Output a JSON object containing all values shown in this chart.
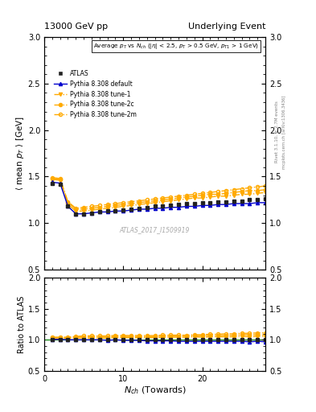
{
  "title_left": "13000 GeV pp",
  "title_right": "Underlying Event",
  "watermark": "ATLAS_2017_I1509919",
  "right_label_top": "Rivet 3.1.10, ≥ 2.7M events",
  "right_label_bottom": "mcplots.cern.ch [arXiv:1306.3436]",
  "ylim_main": [
    0.5,
    3.0
  ],
  "ylim_ratio": [
    0.5,
    2.0
  ],
  "xlim": [
    0,
    28
  ],
  "nch": [
    1,
    2,
    3,
    4,
    5,
    6,
    7,
    8,
    9,
    10,
    11,
    12,
    13,
    14,
    15,
    16,
    17,
    18,
    19,
    20,
    21,
    22,
    23,
    24,
    25,
    26,
    27,
    28
  ],
  "atlas_data": [
    1.43,
    1.42,
    1.18,
    1.1,
    1.1,
    1.11,
    1.12,
    1.13,
    1.13,
    1.14,
    1.15,
    1.16,
    1.17,
    1.18,
    1.18,
    1.19,
    1.2,
    1.21,
    1.21,
    1.22,
    1.22,
    1.23,
    1.23,
    1.24,
    1.24,
    1.25,
    1.25,
    1.26
  ],
  "pythia_default": [
    1.44,
    1.43,
    1.18,
    1.1,
    1.1,
    1.11,
    1.12,
    1.12,
    1.13,
    1.13,
    1.14,
    1.15,
    1.15,
    1.16,
    1.16,
    1.17,
    1.17,
    1.18,
    1.18,
    1.19,
    1.19,
    1.2,
    1.2,
    1.21,
    1.21,
    1.21,
    1.22,
    1.22
  ],
  "pythia_tune1": [
    1.47,
    1.46,
    1.2,
    1.13,
    1.13,
    1.14,
    1.15,
    1.16,
    1.17,
    1.18,
    1.19,
    1.2,
    1.21,
    1.22,
    1.23,
    1.24,
    1.25,
    1.26,
    1.27,
    1.27,
    1.28,
    1.29,
    1.29,
    1.3,
    1.31,
    1.31,
    1.32,
    1.33
  ],
  "pythia_tune2c": [
    1.48,
    1.47,
    1.22,
    1.15,
    1.15,
    1.16,
    1.17,
    1.18,
    1.19,
    1.2,
    1.21,
    1.22,
    1.23,
    1.24,
    1.25,
    1.26,
    1.27,
    1.28,
    1.29,
    1.3,
    1.31,
    1.31,
    1.32,
    1.33,
    1.34,
    1.35,
    1.35,
    1.36
  ],
  "pythia_tune2m": [
    1.49,
    1.48,
    1.23,
    1.16,
    1.17,
    1.18,
    1.19,
    1.2,
    1.21,
    1.22,
    1.23,
    1.24,
    1.25,
    1.26,
    1.27,
    1.28,
    1.29,
    1.3,
    1.31,
    1.32,
    1.33,
    1.34,
    1.35,
    1.36,
    1.37,
    1.38,
    1.39,
    1.4
  ],
  "color_atlas": "#222222",
  "color_default": "#0000cc",
  "color_orange": "#ffaa00"
}
